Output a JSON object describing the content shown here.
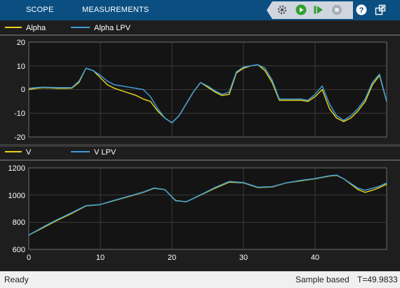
{
  "toolstrip": {
    "tabs": [
      {
        "label": "SCOPE"
      },
      {
        "label": "MEASUREMENTS"
      }
    ],
    "icons": [
      "settings-icon",
      "run-icon",
      "step-forward-icon",
      "stop-icon",
      "help-icon",
      "undock-icon"
    ],
    "run_color": "#2fa02f",
    "bg_color": "#0b4f82"
  },
  "plots": [
    {
      "legend": [
        {
          "name": "Alpha",
          "color": "#e6d11a"
        },
        {
          "name": "Alpha LPV",
          "color": "#3f9bd6"
        }
      ],
      "ylim": [
        -20,
        20
      ],
      "yticks": [
        "-20",
        "-10",
        "0",
        "10",
        "20"
      ]
    },
    {
      "legend": [
        {
          "name": "V",
          "color": "#e6d11a"
        },
        {
          "name": "V LPV",
          "color": "#3f9bd6"
        }
      ],
      "ylim": [
        600,
        1200
      ],
      "yticks": [
        "600",
        "800",
        "1000",
        "1200"
      ],
      "xticks": [
        "0",
        "10",
        "20",
        "30",
        "40"
      ]
    }
  ],
  "chart_data": [
    {
      "type": "line",
      "xlim": [
        0,
        50
      ],
      "ylim": [
        -20,
        20
      ],
      "grid": true,
      "series": [
        {
          "name": "Alpha",
          "color": "#e6d11a",
          "x": [
            0,
            1,
            2,
            3,
            4,
            5,
            6,
            7,
            8,
            9,
            10,
            11,
            12,
            13,
            14,
            15,
            16,
            17,
            18,
            19,
            20,
            21,
            22,
            23,
            24,
            25,
            26,
            27,
            28,
            29,
            30,
            31,
            32,
            33,
            34,
            35,
            36,
            37,
            38,
            39,
            40,
            41,
            42,
            43,
            44,
            45,
            46,
            47,
            48,
            49,
            50
          ],
          "y": [
            0,
            0.5,
            0.8,
            0.7,
            0.5,
            0.5,
            0.6,
            3,
            9,
            8,
            5,
            2,
            0.5,
            -0.5,
            -1.5,
            -2.5,
            -4,
            -5,
            -9,
            -12,
            -14,
            -11,
            -6,
            -1,
            3,
            1,
            -1,
            -2.5,
            -2,
            7,
            9,
            10,
            10.5,
            8,
            3,
            -4.5,
            -4.5,
            -4.5,
            -4.5,
            -5,
            -3,
            0,
            -8,
            -12,
            -13.5,
            -12,
            -9,
            -5,
            2,
            6,
            -5
          ]
        },
        {
          "name": "Alpha LPV",
          "color": "#3f9bd6",
          "x": [
            0,
            1,
            2,
            3,
            4,
            5,
            6,
            7,
            8,
            9,
            10,
            11,
            12,
            13,
            14,
            15,
            16,
            17,
            18,
            19,
            20,
            21,
            22,
            23,
            24,
            25,
            26,
            27,
            28,
            29,
            30,
            31,
            32,
            33,
            34,
            35,
            36,
            37,
            38,
            39,
            40,
            41,
            42,
            43,
            44,
            45,
            46,
            47,
            48,
            49,
            50
          ],
          "y": [
            0.5,
            0.8,
            1,
            0.9,
            0.8,
            0.8,
            0.8,
            3.5,
            9,
            8,
            6,
            3.5,
            2,
            1.5,
            1,
            0.5,
            0,
            -3,
            -8,
            -12,
            -14,
            -11,
            -6,
            -1,
            3,
            1.5,
            -0.5,
            -2,
            -1,
            7.5,
            9.5,
            10,
            10.5,
            9,
            4,
            -4,
            -4,
            -4,
            -4,
            -4.5,
            -2,
            1.5,
            -6,
            -11,
            -13,
            -11,
            -8,
            -4,
            3,
            6.5,
            -5
          ]
        }
      ]
    },
    {
      "type": "line",
      "xlim": [
        0,
        50
      ],
      "ylim": [
        600,
        1200
      ],
      "grid": true,
      "series": [
        {
          "name": "V",
          "color": "#e6d11a",
          "x": [
            0,
            2,
            4,
            6,
            8,
            10,
            12,
            14,
            16,
            17.5,
            19,
            20.5,
            22,
            24,
            26,
            28,
            30,
            32,
            34,
            36,
            38,
            40,
            42,
            43,
            44,
            45,
            46,
            47,
            48,
            49,
            50
          ],
          "y": [
            705,
            760,
            815,
            865,
            920,
            930,
            960,
            990,
            1020,
            1050,
            1040,
            960,
            950,
            1000,
            1050,
            1095,
            1090,
            1055,
            1060,
            1090,
            1105,
            1120,
            1140,
            1145,
            1120,
            1080,
            1040,
            1020,
            1035,
            1055,
            1080
          ]
        },
        {
          "name": "V LPV",
          "color": "#3f9bd6",
          "x": [
            0,
            2,
            4,
            6,
            8,
            10,
            12,
            14,
            16,
            17.5,
            19,
            20.5,
            22,
            24,
            26,
            28,
            30,
            32,
            34,
            36,
            38,
            40,
            42,
            43,
            44,
            45,
            46,
            47,
            48,
            49,
            50
          ],
          "y": [
            705,
            765,
            820,
            870,
            922,
            930,
            962,
            992,
            1022,
            1052,
            1040,
            958,
            950,
            1002,
            1055,
            1100,
            1092,
            1058,
            1062,
            1090,
            1108,
            1122,
            1142,
            1148,
            1120,
            1085,
            1050,
            1035,
            1050,
            1065,
            1090
          ]
        }
      ]
    }
  ],
  "status": {
    "left": "Ready",
    "mode": "Sample based",
    "time": "T=49.9833"
  }
}
